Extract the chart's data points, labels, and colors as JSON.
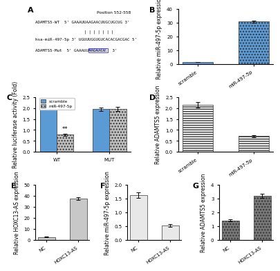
{
  "panel_A": {
    "position_label": "Position 552-558",
    "wt_label": "ADAMTS5-WT",
    "wt_seq": "5' GAAAUUAAGAACUUGCUGCUG 3'",
    "mir_label": "hsa-miR-497-5p",
    "mir_seq": "3' UGUUUGGUGUCACACGACGAC 5'",
    "mut_label": "ADAMTS5-Mut",
    "mut_seq_before": "5' GAAAUUAAGAACU",
    "mut_highlight": "ACGACGAG",
    "mut_seq_after": " 3'"
  },
  "panel_B": {
    "categories": [
      "scramble",
      "miR-497-5p"
    ],
    "values": [
      1.5,
      31.0
    ],
    "errors": [
      0.2,
      0.8
    ],
    "ylabel": "Relative miR-497-5p expression",
    "ylim": [
      0,
      40
    ],
    "yticks": [
      0,
      10,
      20,
      30,
      40
    ]
  },
  "panel_C": {
    "groups": [
      "WT",
      "MUT"
    ],
    "scramble_values": [
      2.0,
      1.95
    ],
    "scramble_errors": [
      0.08,
      0.08
    ],
    "mir_values": [
      0.78,
      1.95
    ],
    "mir_errors": [
      0.05,
      0.1
    ],
    "ylabel": "Relative luciferase activity (Fold)",
    "ylim": [
      0.0,
      2.5
    ],
    "yticks": [
      0.0,
      0.5,
      1.0,
      1.5,
      2.0,
      2.5
    ],
    "scramble_color": "#5b9bd5",
    "mir_color": "#bfbfbf",
    "sig_label": "**"
  },
  "panel_D": {
    "categories": [
      "scramble",
      "miR-497-5p"
    ],
    "values": [
      2.15,
      0.72
    ],
    "errors": [
      0.12,
      0.05
    ],
    "ylabel": "Relative ADAMTS5 expression",
    "ylim": [
      0.0,
      2.5
    ],
    "yticks": [
      0.0,
      0.5,
      1.0,
      1.5,
      2.0,
      2.5
    ]
  },
  "panel_E": {
    "categories": [
      "NC",
      "HOXC13-AS"
    ],
    "values": [
      2.5,
      37.5
    ],
    "errors": [
      0.3,
      1.0
    ],
    "ylabel": "Relative HOXC13-AS expression",
    "ylim": [
      0,
      50
    ],
    "yticks": [
      0,
      10,
      20,
      30,
      40,
      50
    ]
  },
  "panel_F": {
    "categories": [
      "NC",
      "HOXC13-AS"
    ],
    "values": [
      1.63,
      0.52
    ],
    "errors": [
      0.1,
      0.04
    ],
    "ylabel": "Relative miR-497-5p expression",
    "ylim": [
      0,
      2.0
    ],
    "yticks": [
      0.0,
      0.5,
      1.0,
      1.5,
      2.0
    ]
  },
  "panel_G": {
    "categories": [
      "NC",
      "HOXC13-AS"
    ],
    "values": [
      1.4,
      3.2
    ],
    "errors": [
      0.08,
      0.15
    ],
    "ylabel": "Relative ADAMTS5 expression",
    "ylim": [
      0,
      4
    ],
    "yticks": [
      0,
      1,
      2,
      3,
      4
    ]
  },
  "axis_fontsize": 5.5,
  "tick_fontsize": 5.0
}
